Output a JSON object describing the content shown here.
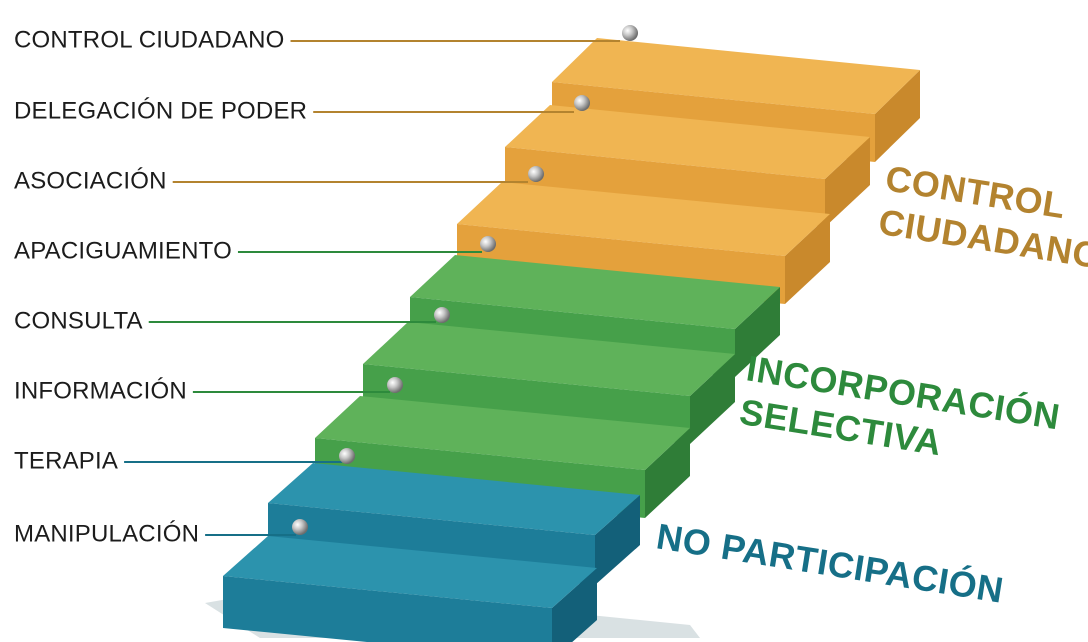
{
  "rungs": [
    {
      "label": "CONTROL CIUDADANO",
      "group": "control"
    },
    {
      "label": "DELEGACIÓN DE PODER",
      "group": "control"
    },
    {
      "label": "ASOCIACIÓN",
      "group": "control"
    },
    {
      "label": "APACIGUAMIENTO",
      "group": "incorporacion"
    },
    {
      "label": "CONSULTA",
      "group": "incorporacion"
    },
    {
      "label": "INFORMACIÓN",
      "group": "incorporacion"
    },
    {
      "label": "TERAPIA",
      "group": "no_participacion"
    },
    {
      "label": "MANIPULACIÓN",
      "group": "no_participacion"
    }
  ],
  "groups": {
    "control": {
      "lines": [
        "CONTROL",
        "CIUDADANO"
      ],
      "colors": {
        "top": "#f0b552",
        "front": "#e4a13c",
        "side": "#c9892c",
        "label": "#b3832f"
      }
    },
    "incorporacion": {
      "lines": [
        "INCORPORACIÓN",
        "SELECTIVA"
      ],
      "colors": {
        "top": "#5fb25a",
        "front": "#46a04a",
        "side": "#2f7d37",
        "label": "#2d8a3c"
      }
    },
    "no_participacion": {
      "lines": [
        "NO PARTICIPACIÓN"
      ],
      "colors": {
        "top": "#2c93ad",
        "front": "#1d7d99",
        "side": "#136079",
        "label": "#166f87"
      }
    }
  }
}
